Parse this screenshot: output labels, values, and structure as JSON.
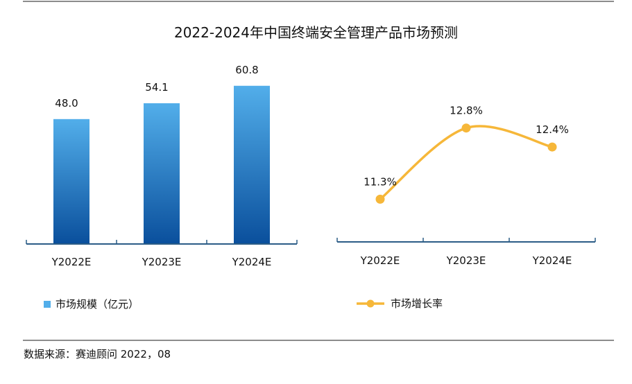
{
  "title": "2022-2024年中国终端安全管理产品市场预测",
  "source": "数据来源：赛迪顾问   2022，08",
  "colors": {
    "bar_top": "#52aeea",
    "bar_bottom": "#0a4f9c",
    "line": "#f6b739",
    "axis": "#2b5c86"
  },
  "chart_data": [
    {
      "type": "bar",
      "categories": [
        "Y2022E",
        "Y2023E",
        "Y2024E"
      ],
      "series": [
        {
          "name": "市场规模（亿元）",
          "values": [
            48.0,
            54.1,
            60.8
          ]
        }
      ],
      "value_labels": [
        "48.0",
        "54.1",
        "60.8"
      ],
      "legend": "bottom-left",
      "ylim": [
        0,
        65
      ]
    },
    {
      "type": "line",
      "smooth": true,
      "categories": [
        "Y2022E",
        "Y2023E",
        "Y2024E"
      ],
      "series": [
        {
          "name": "市场增长率",
          "values": [
            11.3,
            12.8,
            12.4
          ]
        }
      ],
      "value_labels": [
        "11.3%",
        "12.8%",
        "12.4%"
      ],
      "legend": "bottom-center",
      "ylim": [
        10.4,
        13.0
      ]
    }
  ]
}
